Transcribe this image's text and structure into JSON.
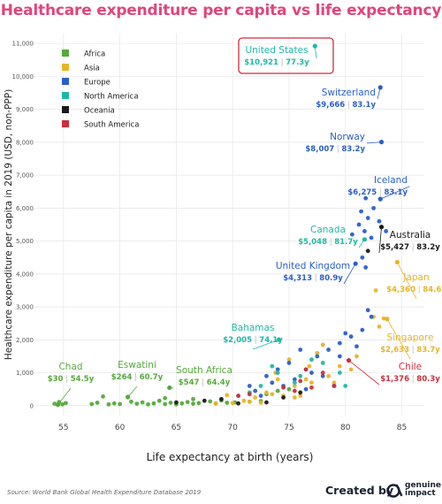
{
  "title": "Healthcare expenditure per capita vs life expectancy",
  "source": "Source: World Bank Global Health Expenditure Database 2019",
  "branding": {
    "created_by": "Created by",
    "name_line1": "genuine",
    "name_line2": "impact"
  },
  "colors": {
    "title": "#e0457b",
    "Africa": "#55aa3c",
    "Asia": "#e9b32a",
    "Europe": "#2a5fc9",
    "North America": "#1fb8a8",
    "Oceania": "#1a1a1a",
    "South America": "#cc2f3b",
    "highlight_box": "#cc2f3b"
  },
  "chart_data": {
    "type": "scatter",
    "xlabel": "Life expectancy at birth (years)",
    "ylabel": "Healthcare expenditure per capita in 2019 (USD, non-PPP)",
    "xlim": [
      52.5,
      87
    ],
    "ylim": [
      -300,
      11300
    ],
    "x_ticks": [
      55,
      60,
      65,
      70,
      75,
      80,
      85
    ],
    "y_ticks": [
      0,
      1000,
      2000,
      3000,
      4000,
      5000,
      6000,
      7000,
      8000,
      9000,
      10000,
      11000
    ],
    "y_tick_labels": [
      "0",
      "1,000",
      "2,000",
      "3,000",
      "4,000",
      "5,000",
      "6,000",
      "7,000",
      "8,000",
      "9,000",
      "10,000",
      "11,000"
    ],
    "grid": true,
    "legend_position": "top-left",
    "legend": [
      "Africa",
      "Asia",
      "Europe",
      "North America",
      "Oceania",
      "South America"
    ],
    "labeled_points": [
      {
        "name": "United States",
        "region": "North America",
        "x": 77.3,
        "y": 10921,
        "value_label": "$10,921",
        "life_label": "77.3y",
        "boxed": true
      },
      {
        "name": "Switzerland",
        "region": "Europe",
        "x": 83.1,
        "y": 9666,
        "value_label": "$9,666",
        "life_label": "83.1y"
      },
      {
        "name": "Norway",
        "region": "Europe",
        "x": 83.2,
        "y": 8007,
        "value_label": "$8,007",
        "life_label": "83.2y"
      },
      {
        "name": "Iceland",
        "region": "Europe",
        "x": 83.1,
        "y": 6275,
        "value_label": "$6,275",
        "life_label": "83.1y"
      },
      {
        "name": "Canada",
        "region": "North America",
        "x": 81.7,
        "y": 5048,
        "value_label": "$5,048",
        "life_label": "81.7y"
      },
      {
        "name": "Australia",
        "region": "Oceania",
        "x": 83.2,
        "y": 5427,
        "value_label": "$5,427",
        "life_label": "83.2y"
      },
      {
        "name": "United Kingdom",
        "region": "Europe",
        "x": 80.9,
        "y": 4313,
        "value_label": "$4,313",
        "life_label": "80.9y"
      },
      {
        "name": "Japan",
        "region": "Asia",
        "x": 84.6,
        "y": 4360,
        "value_label": "$4,360",
        "life_label": "84.6y"
      },
      {
        "name": "Singapore",
        "region": "Asia",
        "x": 83.7,
        "y": 2633,
        "value_label": "$2,633",
        "life_label": "83.7y"
      },
      {
        "name": "Bahamas",
        "region": "North America",
        "x": 74.1,
        "y": 2005,
        "value_label": "$2,005",
        "life_label": "74.1y"
      },
      {
        "name": "Chile",
        "region": "South America",
        "x": 80.3,
        "y": 1376,
        "value_label": "$1,376",
        "life_label": "80.3y"
      },
      {
        "name": "Eswatini",
        "region": "Africa",
        "x": 60.7,
        "y": 264,
        "value_label": "$264",
        "life_label": "60.7y"
      },
      {
        "name": "South Africa",
        "region": "Africa",
        "x": 64.4,
        "y": 547,
        "value_label": "$547",
        "life_label": "64.4y"
      },
      {
        "name": "Chad",
        "region": "Africa",
        "x": 54.5,
        "y": 30,
        "value_label": "$30",
        "life_label": "54.5y"
      }
    ],
    "series": [
      {
        "name": "Africa",
        "points": [
          [
            54.2,
            60
          ],
          [
            54.6,
            110
          ],
          [
            54.9,
            40
          ],
          [
            55.2,
            80
          ],
          [
            57.5,
            50
          ],
          [
            58.0,
            90
          ],
          [
            58.5,
            280
          ],
          [
            59.0,
            40
          ],
          [
            59.5,
            70
          ],
          [
            60.0,
            50
          ],
          [
            61.0,
            120
          ],
          [
            61.5,
            60
          ],
          [
            62.0,
            100
          ],
          [
            62.5,
            40
          ],
          [
            63.0,
            70
          ],
          [
            64.0,
            50
          ],
          [
            64.5,
            90
          ],
          [
            65.0,
            40
          ],
          [
            65.5,
            70
          ],
          [
            66.0,
            110
          ],
          [
            66.5,
            60
          ],
          [
            67.0,
            80
          ],
          [
            68.0,
            130
          ],
          [
            68.5,
            70
          ],
          [
            69.0,
            160
          ],
          [
            69.5,
            90
          ],
          [
            70.2,
            100
          ],
          [
            71.5,
            120
          ],
          [
            72.5,
            140
          ],
          [
            74.0,
            450
          ],
          [
            75.0,
            500
          ],
          [
            64.0,
            230
          ],
          [
            63.5,
            150
          ],
          [
            66.5,
            200
          ],
          [
            73.0,
            350
          ]
        ]
      },
      {
        "name": "Asia",
        "points": [
          [
            68.5,
            60
          ],
          [
            70.0,
            80
          ],
          [
            71.0,
            150
          ],
          [
            71.5,
            120
          ],
          [
            72.0,
            250
          ],
          [
            72.5,
            90
          ],
          [
            73.0,
            400
          ],
          [
            73.5,
            350
          ],
          [
            74.0,
            800
          ],
          [
            74.5,
            300
          ],
          [
            75.0,
            1400
          ],
          [
            75.5,
            600
          ],
          [
            76.0,
            300
          ],
          [
            76.5,
            800
          ],
          [
            77.0,
            700
          ],
          [
            77.5,
            1600
          ],
          [
            78.0,
            1850
          ],
          [
            78.5,
            900
          ],
          [
            79.0,
            700
          ],
          [
            79.5,
            1200
          ],
          [
            80.5,
            1100
          ],
          [
            82.5,
            2700
          ],
          [
            83.0,
            2400
          ],
          [
            83.4,
            2650
          ],
          [
            82.7,
            3500
          ],
          [
            81.0,
            1500
          ],
          [
            76.8,
            1200
          ],
          [
            75.5,
            250
          ],
          [
            69.5,
            320
          ],
          [
            73.8,
            1000
          ]
        ]
      },
      {
        "name": "Europe",
        "points": [
          [
            71.5,
            600
          ],
          [
            72.0,
            450
          ],
          [
            72.5,
            300
          ],
          [
            73.0,
            900
          ],
          [
            73.5,
            700
          ],
          [
            74.0,
            1100
          ],
          [
            74.5,
            600
          ],
          [
            75.0,
            1300
          ],
          [
            75.5,
            800
          ],
          [
            76.0,
            1700
          ],
          [
            76.5,
            500
          ],
          [
            77.0,
            1000
          ],
          [
            77.5,
            1500
          ],
          [
            78.0,
            900
          ],
          [
            78.5,
            1700
          ],
          [
            79.0,
            600
          ],
          [
            79.5,
            1500
          ],
          [
            80.0,
            2200
          ],
          [
            80.5,
            2100
          ],
          [
            81.0,
            1800
          ],
          [
            81.5,
            2300
          ],
          [
            82.0,
            2900
          ],
          [
            82.3,
            2700
          ],
          [
            81.5,
            4500
          ],
          [
            81.8,
            4200
          ],
          [
            81.2,
            5500
          ],
          [
            81.4,
            5900
          ],
          [
            81.7,
            5300
          ],
          [
            82.0,
            5700
          ],
          [
            82.5,
            6000
          ],
          [
            82.3,
            5100
          ],
          [
            83.0,
            5600
          ],
          [
            81.8,
            6300
          ],
          [
            80.6,
            5200
          ],
          [
            83.6,
            5300
          ],
          [
            79.5,
            1900
          ]
        ]
      },
      {
        "name": "North America",
        "points": [
          [
            70.5,
            300
          ],
          [
            72.5,
            600
          ],
          [
            73.5,
            1200
          ],
          [
            74.0,
            1000
          ],
          [
            75.5,
            700
          ],
          [
            76.0,
            900
          ],
          [
            76.5,
            1100
          ],
          [
            78.0,
            1300
          ],
          [
            79.5,
            1000
          ],
          [
            80.0,
            600
          ],
          [
            77.0,
            1400
          ],
          [
            71.5,
            400
          ]
        ]
      },
      {
        "name": "Oceania",
        "points": [
          [
            65.0,
            100
          ],
          [
            67.5,
            150
          ],
          [
            69.0,
            200
          ],
          [
            70.5,
            70
          ],
          [
            73.0,
            100
          ],
          [
            74.5,
            250
          ],
          [
            82.0,
            4700
          ],
          [
            76.0,
            400
          ]
        ]
      },
      {
        "name": "South America",
        "points": [
          [
            70.5,
            300
          ],
          [
            71.5,
            350
          ],
          [
            74.5,
            550
          ],
          [
            75.5,
            450
          ],
          [
            76.0,
            750
          ],
          [
            77.0,
            550
          ],
          [
            78.0,
            1000
          ],
          [
            79.0,
            600
          ],
          [
            76.5,
            1100
          ]
        ]
      }
    ]
  }
}
